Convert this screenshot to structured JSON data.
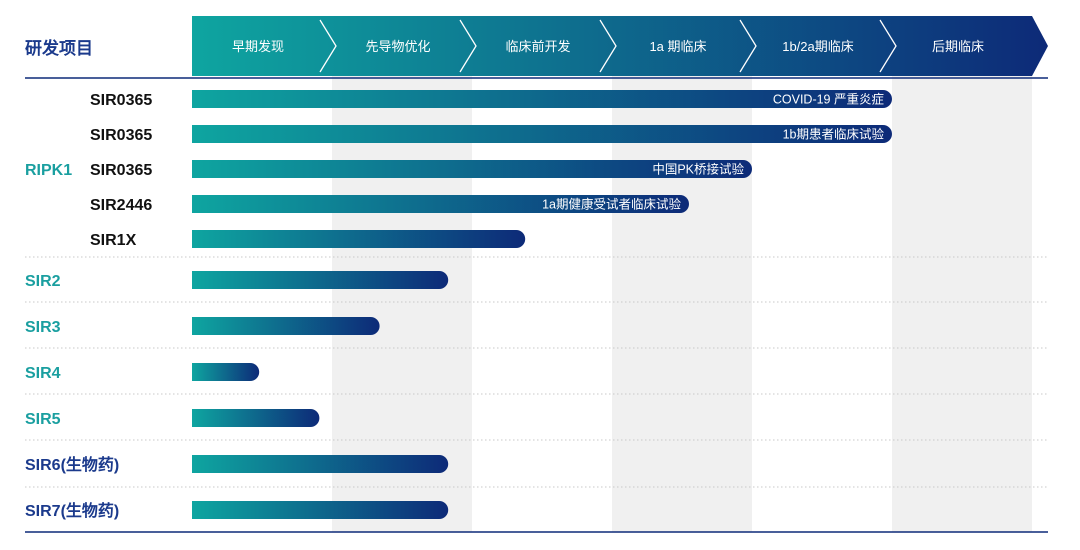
{
  "header_title": "研发项目",
  "colors": {
    "grad_start": "#0ea5a0",
    "grad_end": "#0d2a78",
    "title_blue": "#1b3a8c",
    "teal_label": "#1a9fa0",
    "dark_text": "#111111",
    "band_gray": "#f0f0f0",
    "divider": "#c8c8c8",
    "axis_line": "#0d2a78"
  },
  "chart_data": {
    "type": "bar",
    "phases": [
      "早期发现",
      "先导物优化",
      "临床前开发",
      "1a 期临床",
      "1b/2a期临床",
      "后期临床"
    ],
    "rows": [
      {
        "group": "RIPK1",
        "name": "SIR0365",
        "progress": 5.0,
        "label": "COVID-19 严重炎症"
      },
      {
        "group": "RIPK1",
        "name": "SIR0365",
        "progress": 5.0,
        "label": "1b期患者临床试验"
      },
      {
        "group": "RIPK1",
        "name": "SIR0365",
        "progress": 4.0,
        "label": "中国PK桥接试验"
      },
      {
        "group": "RIPK1",
        "name": "SIR2446",
        "progress": 3.55,
        "label": "1a期健康受试者临床试验"
      },
      {
        "group": "RIPK1",
        "name": "SIR1X",
        "progress": 2.38,
        "label": ""
      },
      {
        "group": "SIR2",
        "name": "",
        "progress": 1.83,
        "label": ""
      },
      {
        "group": "SIR3",
        "name": "",
        "progress": 1.34,
        "label": ""
      },
      {
        "group": "SIR4",
        "name": "",
        "progress": 0.48,
        "label": ""
      },
      {
        "group": "SIR5",
        "name": "",
        "progress": 0.91,
        "label": ""
      },
      {
        "group": "SIR6(生物药)",
        "name": "",
        "progress": 1.83,
        "label": ""
      },
      {
        "group": "SIR7(生物药)",
        "name": "",
        "progress": 1.83,
        "label": ""
      }
    ],
    "group_label_colors": {
      "RIPK1": "#1a9fa0",
      "SIR2": "#1a9fa0",
      "SIR3": "#1a9fa0",
      "SIR4": "#1a9fa0",
      "SIR5": "#1a9fa0",
      "SIR6(生物药)": "#1b3a8c",
      "SIR7(生物药)": "#1b3a8c"
    }
  }
}
